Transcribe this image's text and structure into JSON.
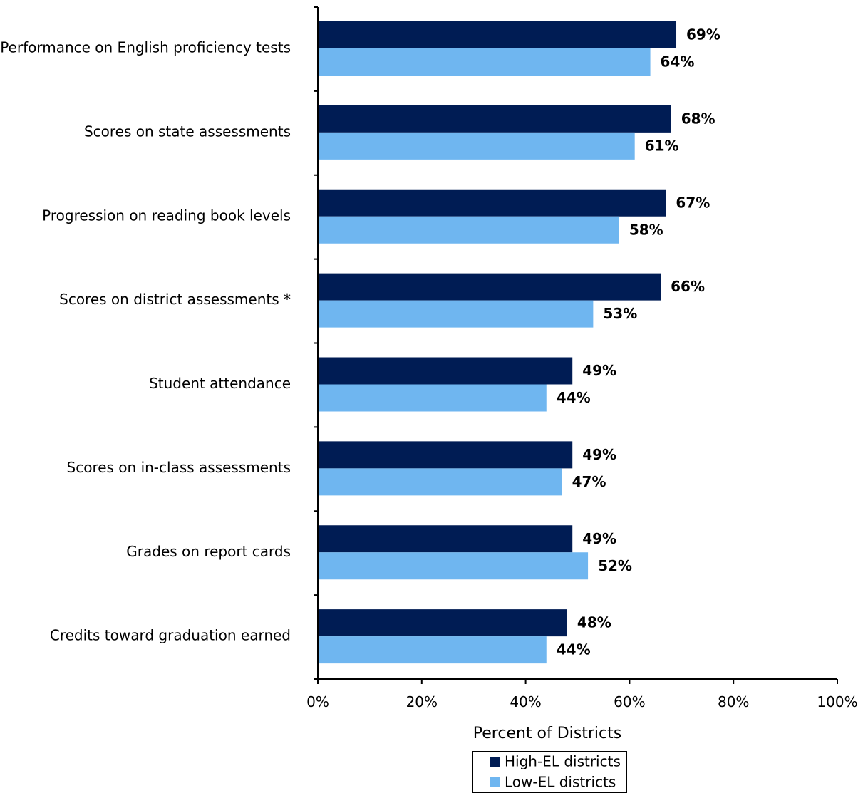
{
  "chart_data": {
    "type": "bar",
    "orientation": "horizontal",
    "categories": [
      "Performance on English proficiency tests",
      "Scores on state assessments",
      "Progression on reading book levels",
      "Scores on district assessments *",
      "Student attendance",
      "Scores on in-class assessments",
      "Grades on report cards",
      "Credits toward graduation earned"
    ],
    "series": [
      {
        "name": "High-EL districts",
        "color": "#001c54",
        "values": [
          69,
          68,
          67,
          66,
          49,
          49,
          49,
          48
        ],
        "labels": [
          "69%",
          "68%",
          "67%",
          "66%",
          "49%",
          "49%",
          "49%",
          "48%"
        ]
      },
      {
        "name": "Low-EL districts",
        "color": "#6fb6f0",
        "values": [
          64,
          61,
          58,
          53,
          44,
          47,
          52,
          44
        ],
        "labels": [
          "64%",
          "61%",
          "58%",
          "53%",
          "44%",
          "47%",
          "52%",
          "44%"
        ]
      }
    ],
    "xlabel": "Percent of Districts",
    "xlim": [
      0,
      100
    ],
    "xticks": [
      0,
      20,
      40,
      60,
      80,
      100
    ],
    "xtick_labels": [
      "0%",
      "20%",
      "40%",
      "60%",
      "80%",
      "100%"
    ],
    "grid": false,
    "legend": "bottom-center"
  }
}
